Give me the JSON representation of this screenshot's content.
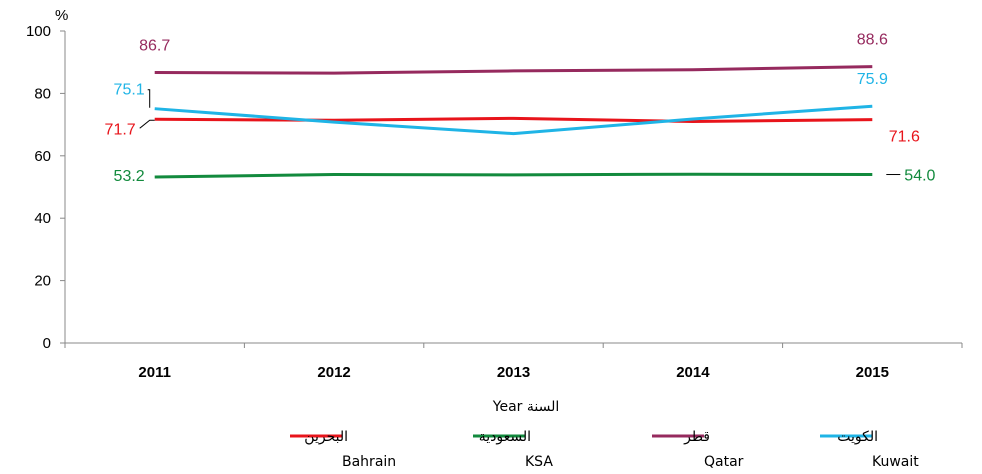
{
  "chart_data": {
    "type": "line",
    "ylabel": "%",
    "xlabel": "السنة Year",
    "categories": [
      "2011",
      "2012",
      "2013",
      "2014",
      "2015"
    ],
    "ylim": [
      0,
      100
    ],
    "yticks": [
      "0",
      "20",
      "40",
      "60",
      "80",
      "100"
    ],
    "grid": false,
    "legend_position": "bottom",
    "series": [
      {
        "name": "البحرين",
        "name_en": "Bahrain",
        "color": "#e8141b",
        "values": [
          71.7,
          71.4,
          72.0,
          71.0,
          71.6
        ],
        "start_label": "71.7",
        "end_label": "71.6"
      },
      {
        "name": "السعودية",
        "name_en": "KSA",
        "color": "#128a3d",
        "values": [
          53.2,
          54.0,
          53.9,
          54.1,
          54.0
        ],
        "start_label": "53.2",
        "end_label": "54.0"
      },
      {
        "name": "قطر",
        "name_en": "Qatar",
        "color": "#962a5e",
        "values": [
          86.7,
          86.5,
          87.2,
          87.6,
          88.6
        ],
        "start_label": "86.7",
        "end_label": "88.6"
      },
      {
        "name": "الكويت",
        "name_en": "Kuwait",
        "color": "#1fb4e6",
        "values": [
          75.1,
          70.8,
          67.1,
          71.8,
          75.9
        ],
        "start_label": "75.1",
        "end_label": "75.9"
      }
    ]
  }
}
